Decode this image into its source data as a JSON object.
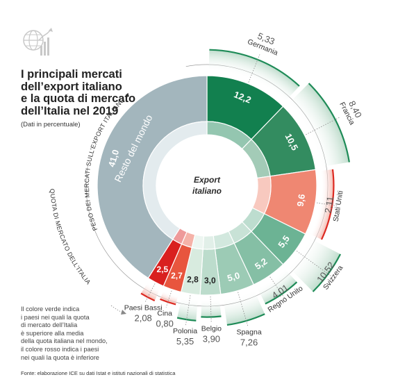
{
  "title_lines": [
    "I principali mercati",
    "dell’export italiano",
    "e la quota di mercato",
    "dell’Italia nel 2019"
  ],
  "subtitle": "(Dati in percentuale)",
  "center_label": [
    "Export",
    "italiano"
  ],
  "outer_axis_label": "PESO DEI MERCATI SULL’EXPORT ITALIANO ▼",
  "inner_axis_label": "QUOTA DI MERCATO DELL’ITALIA",
  "note_lines": [
    "Il colore verde indica",
    "i paesi nei quali la quota",
    "di mercato dell’Italia",
    "è superiore alla media",
    "della quota italiana nel mondo,",
    "il colore rosso indica i paesi",
    "nei quali la quota è inferiore"
  ],
  "source": "Fonte: elaborazione ICE su dati Istat e istituti nazionali di statistica",
  "colors": {
    "rest": "#a3b6bd",
    "dark_green": "#12804f",
    "mid_green": "#338c60",
    "light_green_1": "#6cb394",
    "light_green_2": "#9ccbb5",
    "pale_green": "#d8ebdf",
    "salmon": "#ef8772",
    "red": "#d9201f",
    "red_orange": "#e8553e",
    "ring_light": "#e3ebee"
  },
  "chart_data": {
    "type": "pie",
    "title": "I principali mercati dell’export italiano e la quota di mercato dell’Italia nel 2019",
    "unit": "%",
    "series": [
      {
        "name": "PESO DEI MERCATI SULL’EXPORT ITALIANO",
        "description": "share of Italian exports by market"
      },
      {
        "name": "QUOTA DI MERCATO DELL’ITALIA",
        "description": "Italy's market share in each country"
      }
    ],
    "segments": [
      {
        "name": "Germania",
        "weight": 12.2,
        "weight_label": "12,2",
        "quota": 5.33,
        "quota_label": "5,33",
        "color": "#12804f",
        "above_average": true
      },
      {
        "name": "Francia",
        "weight": 10.5,
        "weight_label": "10,5",
        "quota": 8.4,
        "quota_label": "8,40",
        "color": "#338c60",
        "above_average": true
      },
      {
        "name": "Stati Uniti",
        "weight": 9.6,
        "weight_label": "9,6",
        "quota": 2.11,
        "quota_label": "2,11",
        "color": "#ef8772",
        "above_average": false
      },
      {
        "name": "Svizzera",
        "weight": 5.5,
        "weight_label": "5,5",
        "quota": 10.52,
        "quota_label": "10,52",
        "color": "#6cb394",
        "above_average": true
      },
      {
        "name": "Regno Unito",
        "weight": 5.2,
        "weight_label": "5,2",
        "quota": 4.01,
        "quota_label": "4,01",
        "color": "#85bfa5",
        "above_average": true
      },
      {
        "name": "Spagna",
        "weight": 5.0,
        "weight_label": "5,0",
        "quota": 7.26,
        "quota_label": "7,26",
        "color": "#9ccbb5",
        "above_average": true
      },
      {
        "name": "Belgio",
        "weight": 3.0,
        "weight_label": "3,0",
        "quota": 3.9,
        "quota_label": "3,90",
        "color": "#bcdccc",
        "above_average": true
      },
      {
        "name": "Polonia",
        "weight": 2.8,
        "weight_label": "2,8",
        "quota": 5.35,
        "quota_label": "5,35",
        "color": "#d8ebdf",
        "above_average": true
      },
      {
        "name": "Cina",
        "weight": 2.7,
        "weight_label": "2,7",
        "quota": 0.8,
        "quota_label": "0,80",
        "color": "#e8553e",
        "above_average": false
      },
      {
        "name": "Paesi Bassi",
        "weight": 2.5,
        "weight_label": "2,5",
        "quota": 2.08,
        "quota_label": "2,08",
        "color": "#d9201f",
        "above_average": false
      },
      {
        "name": "Resto del mondo",
        "weight": 41.0,
        "weight_label": "41,0",
        "quota": null,
        "quota_label": "",
        "color": "#a3b6bd",
        "above_average": null
      }
    ]
  }
}
